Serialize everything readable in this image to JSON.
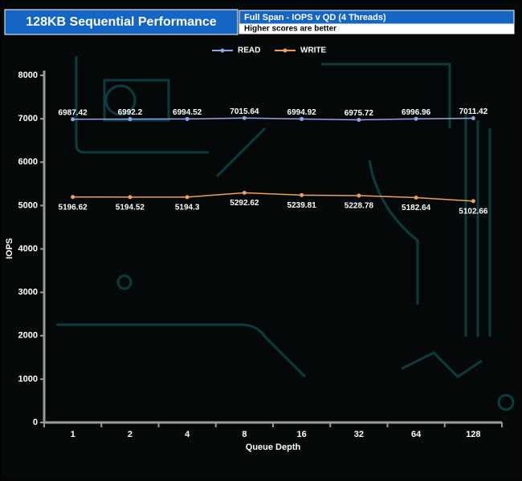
{
  "chart_data": {
    "type": "line",
    "title": "128KB Sequential Performance",
    "subtitle": "Full Span - IOPS v QD (4 Threads)",
    "note": "Higher scores are better",
    "x_label": "Queue Depth",
    "y_label": "IOPS",
    "categories": [
      "1",
      "2",
      "4",
      "8",
      "16",
      "32",
      "64",
      "128"
    ],
    "series": [
      {
        "name": "READ",
        "color": "#8fa6e8",
        "values": [
          6987.42,
          6992.2,
          6994.52,
          7015.64,
          6994.92,
          6975.72,
          6996.96,
          7011.42
        ]
      },
      {
        "name": "WRITE",
        "color": "#f0a058",
        "values": [
          5196.62,
          5194.52,
          5194.3,
          5292.62,
          5239.81,
          5228.78,
          5182.64,
          5102.66
        ]
      }
    ],
    "ylim": [
      0,
      8000
    ],
    "yticks": [
      0,
      1000,
      2000,
      3000,
      4000,
      5000,
      6000,
      7000,
      8000
    ],
    "legend": "top"
  }
}
